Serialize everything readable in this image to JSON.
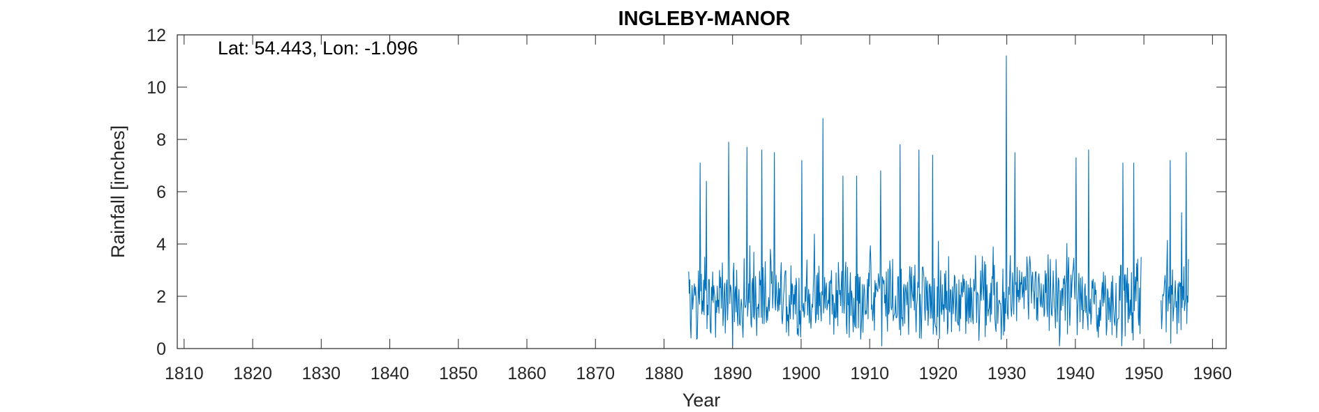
{
  "chart_data": {
    "type": "line",
    "title": "INGLEBY-MANOR",
    "xlabel": "Year",
    "ylabel": "Rainfall [inches]",
    "annotation": "Lat: 54.443, Lon: -1.096",
    "xlim": [
      1809,
      1962
    ],
    "ylim": [
      0,
      12
    ],
    "xticks": [
      1810,
      1820,
      1830,
      1840,
      1850,
      1860,
      1870,
      1880,
      1890,
      1900,
      1910,
      1920,
      1930,
      1940,
      1950,
      1960
    ],
    "yticks": [
      0,
      2,
      4,
      6,
      8,
      10,
      12
    ],
    "grid": false,
    "line_color": "#0072BD",
    "series": [
      {
        "segments": [
          {
            "start_year": 1883.6,
            "end_year": 1949.6,
            "values_approx": "monthly totals fluctuating mostly between ~0.5 and ~5 inches",
            "peaks": [
              {
                "x": 1885.3,
                "y": 7.1
              },
              {
                "x": 1886.2,
                "y": 6.4
              },
              {
                "x": 1889.4,
                "y": 7.9
              },
              {
                "x": 1892.1,
                "y": 7.7
              },
              {
                "x": 1894.3,
                "y": 7.6
              },
              {
                "x": 1896.1,
                "y": 7.5
              },
              {
                "x": 1900.1,
                "y": 7.2
              },
              {
                "x": 1903.2,
                "y": 8.8
              },
              {
                "x": 1906.1,
                "y": 6.6
              },
              {
                "x": 1908.1,
                "y": 6.6
              },
              {
                "x": 1911.6,
                "y": 6.8
              },
              {
                "x": 1914.4,
                "y": 7.8
              },
              {
                "x": 1917.2,
                "y": 7.6
              },
              {
                "x": 1919.2,
                "y": 7.4
              },
              {
                "x": 1929.9,
                "y": 11.2
              },
              {
                "x": 1931.2,
                "y": 7.5
              },
              {
                "x": 1940.1,
                "y": 7.3
              },
              {
                "x": 1941.9,
                "y": 7.6
              },
              {
                "x": 1946.9,
                "y": 7.1
              },
              {
                "x": 1948.5,
                "y": 7.1
              }
            ],
            "troughs": [
              {
                "x": 1883.9,
                "y": 0.4
              },
              {
                "x": 1890.0,
                "y": 0.1
              },
              {
                "x": 1911.8,
                "y": 0.1
              },
              {
                "x": 1937.7,
                "y": 0.1
              },
              {
                "x": 1946.8,
                "y": 0.1
              }
            ]
          },
          {
            "start_year": 1952.5,
            "end_year": 1956.5,
            "values_approx": "monthly totals between ~0.3 and ~5 inches",
            "peaks": [
              {
                "x": 1953.8,
                "y": 7.2
              },
              {
                "x": 1955.5,
                "y": 5.2
              },
              {
                "x": 1956.2,
                "y": 7.5
              }
            ],
            "troughs": [
              {
                "x": 1953.9,
                "y": 0.2
              }
            ]
          }
        ]
      }
    ]
  }
}
